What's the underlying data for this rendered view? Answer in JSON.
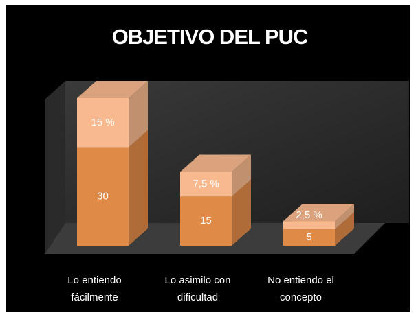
{
  "chart_data": {
    "type": "bar3d_stacked",
    "title": "OBJETIVO DEL PUC",
    "categories": [
      "Lo entiendo fácilmente",
      "Lo asimilo con dificultad",
      "No entiendo el concepto"
    ],
    "series": [
      {
        "color": "#e08a48",
        "values": [
          30,
          15,
          5
        ]
      },
      {
        "color": "#f8b98e",
        "values": [
          15,
          7.5,
          2.5
        ],
        "value_labels": [
          "15 %",
          "7,5 %",
          "2,5 %"
        ]
      }
    ]
  }
}
